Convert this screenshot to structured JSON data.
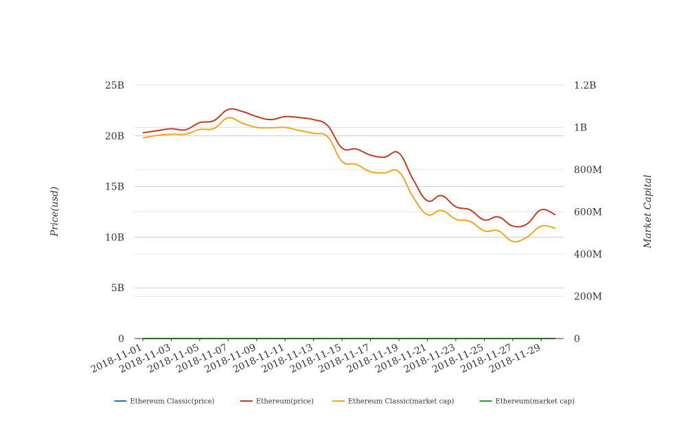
{
  "chart_data": {
    "type": "line",
    "x": [
      "2018-11-01",
      "2018-11-02",
      "2018-11-03",
      "2018-11-04",
      "2018-11-05",
      "2018-11-06",
      "2018-11-07",
      "2018-11-08",
      "2018-11-09",
      "2018-11-10",
      "2018-11-11",
      "2018-11-12",
      "2018-11-13",
      "2018-11-14",
      "2018-11-15",
      "2018-11-16",
      "2018-11-17",
      "2018-11-18",
      "2018-11-19",
      "2018-11-20",
      "2018-11-21",
      "2018-11-22",
      "2018-11-23",
      "2018-11-24",
      "2018-11-25",
      "2018-11-26",
      "2018-11-27",
      "2018-11-28",
      "2018-11-29",
      "2018-11-30"
    ],
    "x_tick_labels": [
      "2018-11-01",
      "2018-11-03",
      "2018-11-05",
      "2018-11-07",
      "2018-11-09",
      "2018-11-11",
      "2018-11-13",
      "2018-11-15",
      "2018-11-17",
      "2018-11-19",
      "2018-11-21",
      "2018-11-23",
      "2018-11-25",
      "2018-11-27",
      "2018-11-29"
    ],
    "y_left": {
      "label": "Price(usd)",
      "range": [
        0,
        25000000000
      ],
      "ticks": [
        0,
        5000000000,
        10000000000,
        15000000000,
        20000000000,
        25000000000
      ],
      "tick_labels": [
        "0",
        "5B",
        "10B",
        "15B",
        "20B",
        "25B"
      ]
    },
    "y_right": {
      "label": "Market Capital",
      "range": [
        0,
        1200000000
      ],
      "ticks": [
        0,
        200000000,
        400000000,
        600000000,
        800000000,
        1000000000,
        1200000000
      ],
      "tick_labels": [
        "0",
        "200M",
        "400M",
        "600M",
        "800M",
        "1B",
        "1.2B"
      ]
    },
    "grid": true,
    "legend_position": "bottom",
    "series": [
      {
        "name": "Ethereum Classic(price)",
        "color": "#2f6fa7",
        "axis": "left",
        "values": [
          9.5,
          9.6,
          9.7,
          9.7,
          9.8,
          9.9,
          10.1,
          10.0,
          9.9,
          9.9,
          9.8,
          9.7,
          9.6,
          9.4,
          9.0,
          8.8,
          8.5,
          8.4,
          8.2,
          6.5,
          5.5,
          5.2,
          5.0,
          4.9,
          4.5,
          4.5,
          4.2,
          4.5,
          4.8,
          4.7
        ]
      },
      {
        "name": "Ethereum(price)",
        "color": "#c23b1e",
        "axis": "left",
        "values": [
          20300000000,
          20500000000,
          20700000000,
          20600000000,
          21300000000,
          21500000000,
          22600000000,
          22400000000,
          21900000000,
          21600000000,
          21900000000,
          21800000000,
          21600000000,
          21000000000,
          18800000000,
          18700000000,
          18100000000,
          17900000000,
          18300000000,
          15700000000,
          13600000000,
          14100000000,
          13000000000,
          12700000000,
          11700000000,
          12000000000,
          11100000000,
          11300000000,
          12700000000,
          12200000000
        ]
      },
      {
        "name": "Ethereum Classic(market cap)",
        "color": "#f2a51a",
        "axis": "right",
        "values": [
          950000000,
          962000000,
          968000000,
          968000000,
          990000000,
          995000000,
          1045000000,
          1020000000,
          1000000000,
          998000000,
          1000000000,
          985000000,
          972000000,
          955000000,
          839000000,
          825000000,
          790000000,
          785000000,
          790000000,
          670000000,
          587000000,
          607000000,
          565000000,
          555000000,
          510000000,
          510000000,
          460000000,
          480000000,
          532000000,
          522000000
        ]
      },
      {
        "name": "Ethereum(market cap)",
        "color": "#2a9a2a",
        "axis": "right",
        "values": [
          10,
          10,
          10,
          10,
          10,
          10,
          10,
          10,
          10,
          10,
          10,
          10,
          10,
          10,
          10,
          10,
          10,
          10,
          10,
          10,
          10,
          10,
          10,
          10,
          10,
          10,
          10,
          10,
          10,
          10
        ]
      }
    ]
  }
}
